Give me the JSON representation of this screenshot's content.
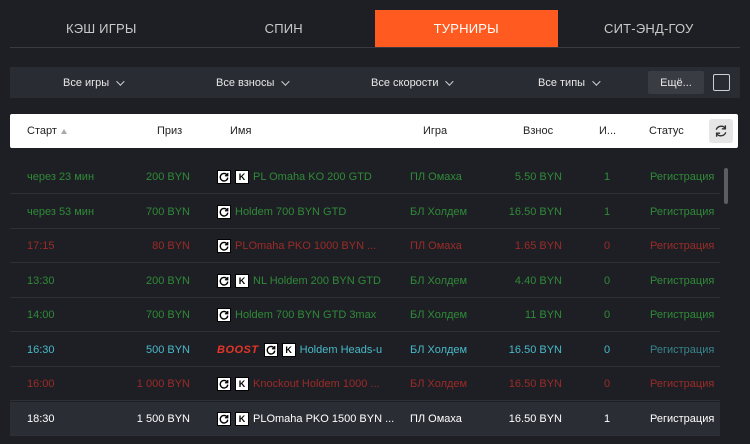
{
  "tabs": [
    {
      "label": "КЭШ ИГРЫ",
      "active": false
    },
    {
      "label": "СПИН",
      "active": false
    },
    {
      "label": "ТУРНИРЫ",
      "active": true
    },
    {
      "label": "СИТ-ЭНД-ГОУ",
      "active": false
    }
  ],
  "filters": {
    "games": "Все игры",
    "buyins": "Все взносы",
    "speeds": "Все скорости",
    "types": "Все типы",
    "more_label": "Ещё..."
  },
  "table": {
    "headers": {
      "start": "Старт",
      "prize": "Приз",
      "name": "Имя",
      "game": "Игра",
      "fee": "Взнос",
      "players": "И...",
      "status": "Статус"
    },
    "rows": [
      {
        "start": "через 23 мин",
        "prize": "200 BYN",
        "badges": [
          "refresh",
          "K"
        ],
        "boost": "",
        "name": "PL Omaha KO 200 GTD",
        "game": "ПЛ Омаха",
        "fee": "5.50 BYN",
        "players": "1",
        "status": "Регистрация",
        "tone": "green"
      },
      {
        "start": "через 53 мин",
        "prize": "700 BYN",
        "badges": [
          "refresh"
        ],
        "boost": "",
        "name": "Holdem 700 BYN GTD",
        "game": "БЛ Холдем",
        "fee": "16.50 BYN",
        "players": "1",
        "status": "Регистрация",
        "tone": "green"
      },
      {
        "start": "17:15",
        "prize": "80 BYN",
        "badges": [
          "refresh"
        ],
        "boost": "",
        "name": "PLOmaha PKO 1000 BYN ...",
        "game": "ПЛ Омаха",
        "fee": "1.65 BYN",
        "players": "0",
        "status": "Регистрация",
        "tone": "red"
      },
      {
        "start": "13:30",
        "prize": "200 BYN",
        "badges": [
          "refresh",
          "K"
        ],
        "boost": "",
        "name": "NL Holdem 200 BYN GTD",
        "game": "БЛ Холдем",
        "fee": "4.40 BYN",
        "players": "0",
        "status": "Регистрация",
        "tone": "green"
      },
      {
        "start": "14:00",
        "prize": "700 BYN",
        "badges": [
          "refresh"
        ],
        "boost": "",
        "name": "Holdem 700 BYN GTD 3max",
        "game": "БЛ Холдем",
        "fee": "11 BYN",
        "players": "0",
        "status": "Регистрация",
        "tone": "green"
      },
      {
        "start": "16:30",
        "prize": "500 BYN",
        "badges": [
          "refresh",
          "K"
        ],
        "boost": "BOOST",
        "name": "Holdem Heads-u",
        "game": "БЛ Холдем",
        "fee": "16.50 BYN",
        "players": "0",
        "status": "Регистрация",
        "tone": "cyan"
      },
      {
        "start": "16:00",
        "prize": "1 000 BYN",
        "badges": [
          "refresh",
          "K"
        ],
        "boost": "",
        "name": "Knockout Holdem 1000 ...",
        "game": "БЛ Холдем",
        "fee": "16.50 BYN",
        "players": "0",
        "status": "Регистрация",
        "tone": "red"
      },
      {
        "start": "18:30",
        "prize": "1 500 BYN",
        "badges": [
          "refresh",
          "K"
        ],
        "boost": "",
        "name": "PLOmaha PKO 1500 BYN ...",
        "game": "ПЛ Омаха",
        "fee": "16.50 BYN",
        "players": "1",
        "status": "Регистрация",
        "tone": "white"
      }
    ]
  },
  "colors": {
    "accent": "#ff5a1f",
    "green": "#2f8a38",
    "red": "#9b2b28",
    "cyan": "#48b9c9"
  }
}
